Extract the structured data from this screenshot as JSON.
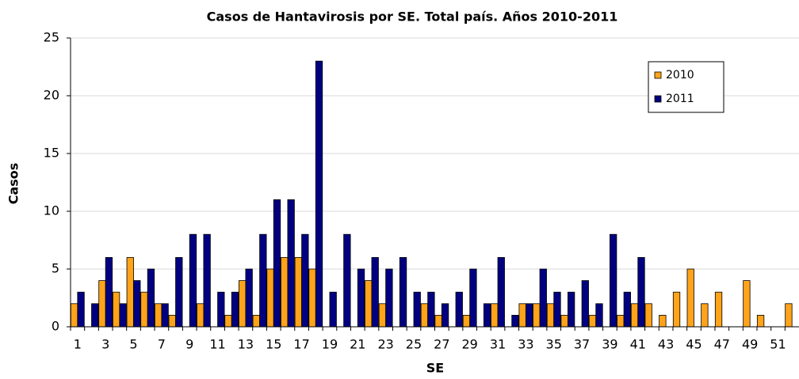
{
  "chart_data": {
    "type": "bar",
    "title": "Casos de Hantavirosis por SE. Total país. Años 2010-2011",
    "x_label": "SE",
    "y_label": "Casos",
    "categories": [
      "1",
      null,
      "3",
      null,
      "5",
      null,
      "7",
      null,
      "9",
      null,
      "11",
      null,
      "13",
      null,
      "15",
      null,
      "17",
      null,
      "19",
      null,
      "21",
      null,
      "23",
      null,
      "25",
      null,
      "27",
      null,
      "29",
      null,
      "31",
      null,
      "33",
      null,
      "35",
      null,
      "37",
      null,
      "39",
      null,
      "41",
      null,
      "43",
      null,
      "45",
      null,
      "47",
      null,
      "49",
      null,
      "51",
      null
    ],
    "series": [
      {
        "name": "2010",
        "color": "#ffa31a",
        "values": [
          2,
          0,
          4,
          3,
          6,
          3,
          2,
          1,
          0,
          2,
          0,
          1,
          4,
          1,
          5,
          6,
          6,
          5,
          0,
          0,
          0,
          4,
          2,
          0,
          0,
          2,
          1,
          0,
          1,
          0,
          2,
          0,
          2,
          2,
          2,
          1,
          0,
          1,
          0,
          1,
          2,
          2,
          1,
          3,
          5,
          2,
          3,
          0,
          4,
          1,
          0,
          2
        ]
      },
      {
        "name": "2011",
        "color": "#000080",
        "values": [
          3,
          2,
          6,
          2,
          4,
          5,
          2,
          6,
          8,
          8,
          3,
          3,
          5,
          8,
          11,
          11,
          8,
          23,
          3,
          8,
          5,
          6,
          5,
          6,
          3,
          3,
          2,
          3,
          5,
          2,
          6,
          1,
          2,
          5,
          3,
          3,
          4,
          2,
          8,
          3,
          6,
          0,
          0,
          0,
          0,
          0,
          0,
          0,
          0,
          0,
          0,
          0
        ]
      }
    ],
    "ylim": [
      0,
      25
    ],
    "yticks": [
      0,
      5,
      10,
      15,
      20,
      25
    ],
    "grid": true,
    "legend": "upper right"
  }
}
